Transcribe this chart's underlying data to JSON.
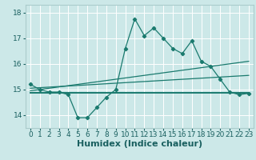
{
  "title": "",
  "xlabel": "Humidex (Indice chaleur)",
  "ylabel": "",
  "bg_color": "#cce8e8",
  "grid_color": "#ffffff",
  "line_color": "#1a7a6e",
  "xlim": [
    -0.5,
    23.5
  ],
  "ylim": [
    13.5,
    18.3
  ],
  "xticks": [
    0,
    1,
    2,
    3,
    4,
    5,
    6,
    7,
    8,
    9,
    10,
    11,
    12,
    13,
    14,
    15,
    16,
    17,
    18,
    19,
    20,
    21,
    22,
    23
  ],
  "yticks": [
    14,
    15,
    16,
    17,
    18
  ],
  "humidex_x": [
    0,
    1,
    2,
    3,
    4,
    5,
    6,
    7,
    8,
    9,
    10,
    11,
    12,
    13,
    14,
    15,
    16,
    17,
    18,
    19,
    20,
    21,
    22,
    23
  ],
  "humidex_y": [
    15.2,
    15.0,
    14.9,
    14.9,
    14.8,
    13.9,
    13.9,
    14.3,
    14.7,
    15.0,
    16.6,
    17.75,
    17.1,
    17.4,
    17.0,
    16.6,
    16.4,
    16.9,
    16.1,
    15.9,
    15.4,
    14.9,
    14.8,
    14.85
  ],
  "line2_x": [
    0,
    23
  ],
  "line2_y": [
    15.05,
    15.55
  ],
  "line3_x": [
    0,
    23
  ],
  "line3_y": [
    14.95,
    16.1
  ],
  "line4_x": [
    0,
    23
  ],
  "line4_y": [
    14.88,
    14.88
  ],
  "xlabel_fontsize": 8,
  "tick_fontsize": 6.5,
  "label_color": "#1a6060"
}
